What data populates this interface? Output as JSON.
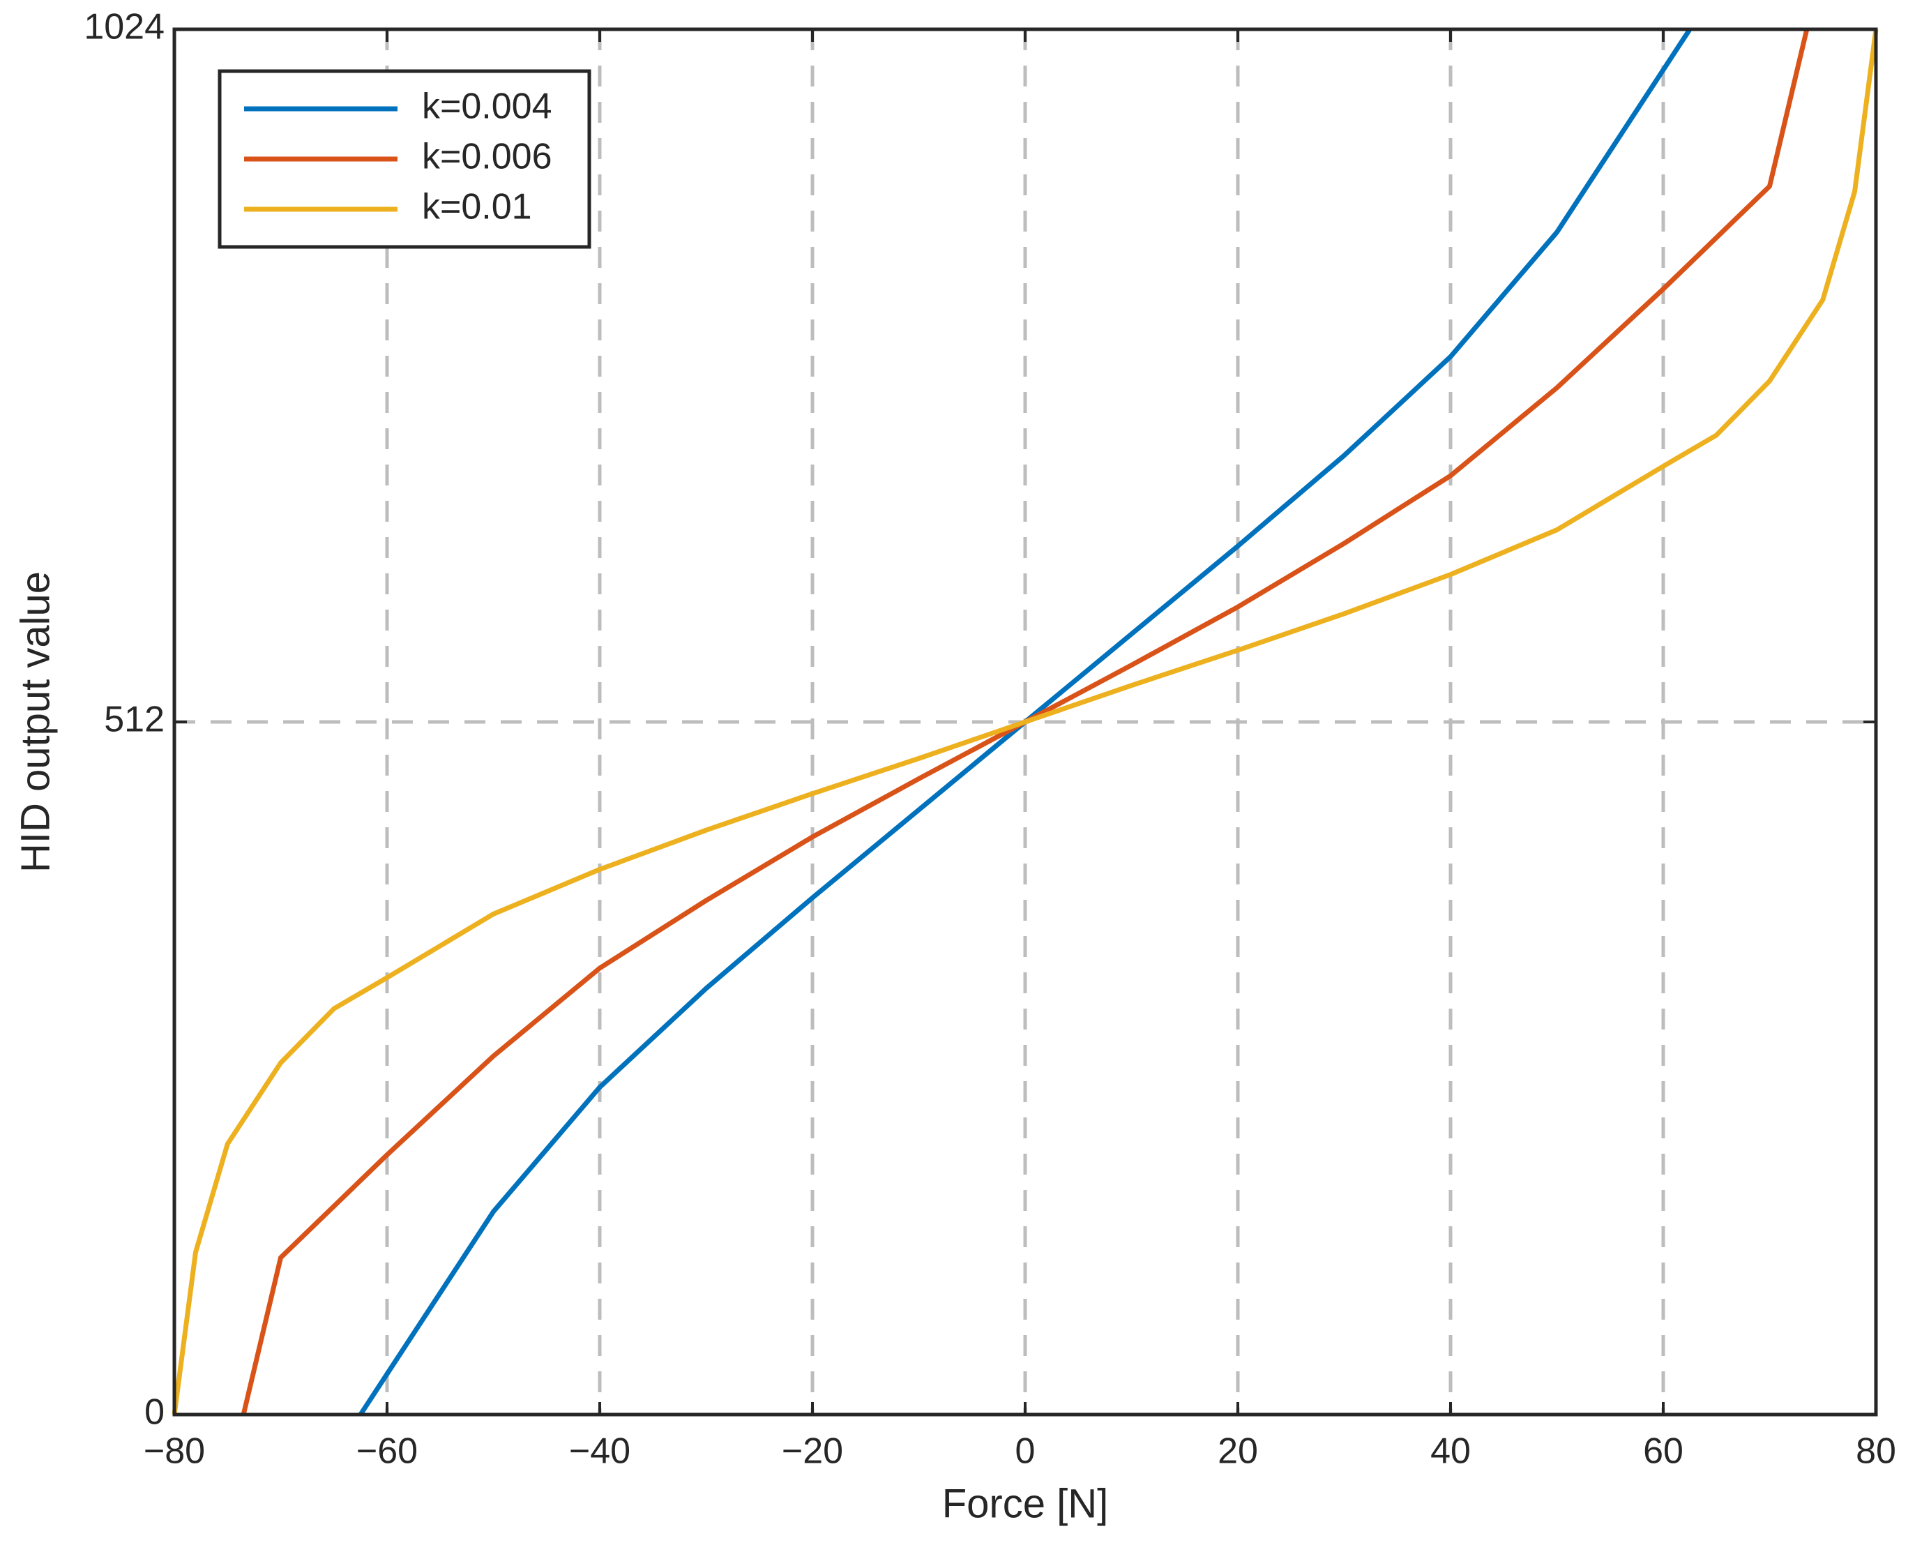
{
  "chart_data": {
    "type": "line",
    "xlabel": "Force [N]",
    "ylabel": "HID output value",
    "xlim": [
      -80,
      80
    ],
    "ylim": [
      0,
      1024
    ],
    "xticks": [
      {
        "value": -80,
        "label": "−80"
      },
      {
        "value": -60,
        "label": "−60"
      },
      {
        "value": -40,
        "label": "−40"
      },
      {
        "value": -20,
        "label": "−20"
      },
      0,
      20,
      40,
      60,
      80
    ],
    "yticks": [
      0,
      512,
      1024
    ],
    "grid": true,
    "legend": "upper left",
    "series": [
      {
        "name": "k=0.004",
        "color": "#0072bd",
        "x": [
          -62.5,
          -60,
          -50,
          -40,
          -30,
          -20,
          -10,
          0,
          10,
          20,
          30,
          40,
          50,
          60,
          62.5
        ],
        "values": [
          0,
          30,
          150,
          242,
          315,
          382,
          447,
          512,
          577,
          642,
          709,
          782,
          874,
          994,
          1024
        ]
      },
      {
        "name": "k=0.006",
        "color": "#d95319",
        "x": [
          -73.5,
          -70,
          -60,
          -50,
          -40,
          -30,
          -20,
          -10,
          0,
          10,
          20,
          30,
          40,
          50,
          60,
          70,
          73.5
        ],
        "values": [
          0,
          116,
          192,
          265,
          330,
          380,
          427,
          470,
          512,
          554,
          597,
          644,
          694,
          759,
          832,
          908,
          1024
        ]
      },
      {
        "name": "k=0.01",
        "color": "#edb120",
        "x": [
          -80,
          -79,
          -78,
          -75,
          -70,
          -65,
          -60,
          -50,
          -40,
          -30,
          -20,
          -10,
          0,
          10,
          20,
          30,
          40,
          50,
          60,
          65,
          70,
          75,
          78,
          79,
          80
        ],
        "values": [
          0,
          60,
          120,
          200,
          260,
          300,
          323,
          370,
          403,
          432,
          459,
          485,
          512,
          539,
          565,
          592,
          621,
          654,
          701,
          724,
          764,
          824,
          904,
          964,
          1024
        ]
      }
    ]
  }
}
